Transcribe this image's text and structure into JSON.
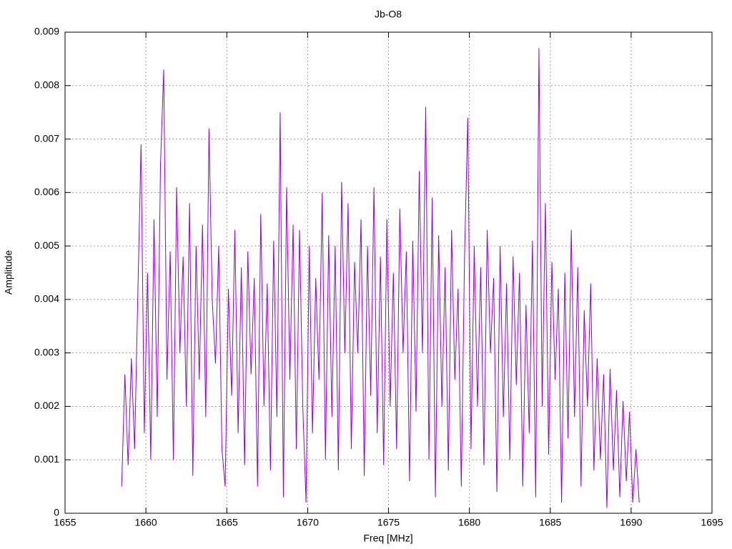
{
  "chart_data": {
    "type": "line",
    "title": "Jb-O8",
    "x_label": "Freq [MHz]",
    "y_label": "Amplitude",
    "color": "#9400d3",
    "grid": true,
    "xlim": [
      1655,
      1695
    ],
    "xticks": [
      1655,
      1660,
      1665,
      1670,
      1675,
      1680,
      1685,
      1690,
      1695
    ],
    "ylim": [
      0,
      0.009
    ],
    "yticks": [
      0,
      0.001,
      0.002,
      0.003,
      0.004,
      0.005,
      0.006,
      0.007,
      0.008,
      0.009
    ],
    "x": [
      1658.5,
      1658.7,
      1658.9,
      1659.1,
      1659.3,
      1659.5,
      1659.7,
      1659.9,
      1660.1,
      1660.3,
      1660.5,
      1660.7,
      1660.9,
      1661.1,
      1661.3,
      1661.5,
      1661.7,
      1661.9,
      1662.1,
      1662.3,
      1662.5,
      1662.7,
      1662.9,
      1663.1,
      1663.3,
      1663.5,
      1663.7,
      1663.9,
      1664.1,
      1664.3,
      1664.5,
      1664.7,
      1664.9,
      1665.1,
      1665.3,
      1665.5,
      1665.7,
      1665.9,
      1666.1,
      1666.3,
      1666.5,
      1666.7,
      1666.9,
      1667.1,
      1667.3,
      1667.5,
      1667.7,
      1667.9,
      1668.1,
      1668.3,
      1668.5,
      1668.7,
      1668.9,
      1669.1,
      1669.3,
      1669.5,
      1669.7,
      1669.9,
      1670.1,
      1670.3,
      1670.5,
      1670.7,
      1670.9,
      1671.1,
      1671.3,
      1671.5,
      1671.7,
      1671.9,
      1672.1,
      1672.3,
      1672.5,
      1672.7,
      1672.9,
      1673.1,
      1673.3,
      1673.5,
      1673.7,
      1673.9,
      1674.1,
      1674.3,
      1674.5,
      1674.7,
      1674.9,
      1675.1,
      1675.3,
      1675.5,
      1675.7,
      1675.9,
      1676.1,
      1676.3,
      1676.5,
      1676.7,
      1676.9,
      1677.1,
      1677.3,
      1677.5,
      1677.7,
      1677.9,
      1678.1,
      1678.3,
      1678.5,
      1678.7,
      1678.9,
      1679.1,
      1679.3,
      1679.5,
      1679.7,
      1679.9,
      1680.1,
      1680.3,
      1680.5,
      1680.7,
      1680.9,
      1681.1,
      1681.3,
      1681.5,
      1681.7,
      1681.9,
      1682.1,
      1682.3,
      1682.5,
      1682.7,
      1682.9,
      1683.1,
      1683.3,
      1683.5,
      1683.7,
      1683.9,
      1684.1,
      1684.3,
      1684.5,
      1684.7,
      1684.9,
      1685.1,
      1685.3,
      1685.5,
      1685.7,
      1685.9,
      1686.1,
      1686.3,
      1686.5,
      1686.7,
      1686.9,
      1687.1,
      1687.3,
      1687.5,
      1687.7,
      1687.9,
      1688.1,
      1688.3,
      1688.5,
      1688.7,
      1688.9,
      1689.1,
      1689.3,
      1689.5,
      1689.7,
      1689.9,
      1690.1,
      1690.3,
      1690.5
    ],
    "values": [
      0.0005,
      0.0026,
      0.0009,
      0.0029,
      0.0012,
      0.0041,
      0.0069,
      0.0015,
      0.0045,
      0.001,
      0.0055,
      0.0018,
      0.0065,
      0.0083,
      0.0025,
      0.0049,
      0.001,
      0.0061,
      0.003,
      0.0048,
      0.002,
      0.0058,
      0.0007,
      0.005,
      0.0025,
      0.0054,
      0.0018,
      0.0072,
      0.004,
      0.0028,
      0.005,
      0.0012,
      0.0005,
      0.0042,
      0.0022,
      0.0053,
      0.0015,
      0.0046,
      0.0009,
      0.0049,
      0.0026,
      0.0044,
      0.0005,
      0.0056,
      0.002,
      0.0043,
      0.0008,
      0.0051,
      0.0018,
      0.0075,
      0.0003,
      0.0061,
      0.0025,
      0.0054,
      0.0012,
      0.0053,
      0.002,
      0.0002,
      0.005,
      0.0015,
      0.0044,
      0.0025,
      0.006,
      0.001,
      0.0052,
      0.0018,
      0.005,
      0.0008,
      0.0062,
      0.003,
      0.0058,
      0.0012,
      0.0047,
      0.003,
      0.0055,
      0.0007,
      0.005,
      0.0022,
      0.0061,
      0.0015,
      0.0048,
      0.0009,
      0.0055,
      0.002,
      0.0045,
      0.0012,
      0.0057,
      0.003,
      0.0049,
      0.0006,
      0.0051,
      0.0019,
      0.0064,
      0.003,
      0.0076,
      0.001,
      0.0059,
      0.0003,
      0.0052,
      0.002,
      0.0046,
      0.0008,
      0.0053,
      0.0025,
      0.0042,
      0.0005,
      0.0048,
      0.0074,
      0.0012,
      0.005,
      0.002,
      0.0046,
      0.0009,
      0.0053,
      0.003,
      0.0044,
      0.0004,
      0.005,
      0.0018,
      0.0043,
      0.001,
      0.0048,
      0.0024,
      0.0045,
      0.0005,
      0.0039,
      0.0015,
      0.0051,
      0.0003,
      0.0087,
      0.002,
      0.0058,
      0.0011,
      0.0047,
      0.0025,
      0.0042,
      0.0002,
      0.0045,
      0.0014,
      0.0053,
      0.0018,
      0.0046,
      0.0005,
      0.0038,
      0.002,
      0.0043,
      0.0008,
      0.0029,
      0.001,
      0.0026,
      0.0001,
      0.0027,
      0.0008,
      0.0023,
      0.0003,
      0.0021,
      0.0006,
      0.0019,
      0.0002,
      0.0012,
      0.0002
    ]
  }
}
